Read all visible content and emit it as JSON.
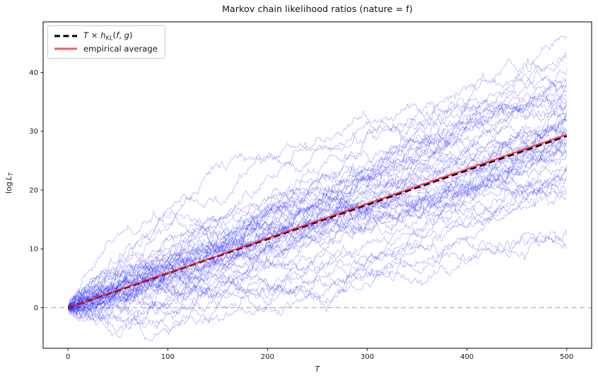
{
  "figure": {
    "title": "Markov chain likelihood ratios (nature = f)",
    "background_color": "#ffffff"
  },
  "chart_data": {
    "type": "line",
    "title": "Markov chain likelihood ratios (nature = f)",
    "xlabel_segments": [
      {
        "t": "T",
        "i": true
      }
    ],
    "ylabel_segments": [
      {
        "t": "log"
      },
      {
        "t": " "
      },
      {
        "t": "L",
        "i": true
      },
      {
        "t": "T",
        "i": true,
        "sub": true
      }
    ],
    "xlim": [
      -25,
      525
    ],
    "ylim": [
      -6.9,
      48.6
    ],
    "xticks": [
      0,
      100,
      200,
      300,
      400,
      500
    ],
    "yticks": [
      0,
      10,
      20,
      30,
      40
    ],
    "grid": false,
    "axes_color": "#000000",
    "tick_label_color": "#1a1a1a",
    "legend": {
      "position": "upper-left",
      "border_color": "#cccccc",
      "entries": [
        {
          "label_segments": [
            {
              "t": "T",
              "i": true
            },
            {
              "t": " × "
            },
            {
              "t": "h",
              "i": true
            },
            {
              "t": "KL",
              "i": true,
              "sub": true
            },
            {
              "t": "("
            },
            {
              "t": "f",
              "i": true
            },
            {
              "t": ", "
            },
            {
              "t": "g",
              "i": true
            },
            {
              "t": ")"
            }
          ],
          "style": "dashed",
          "color": "#000000"
        },
        {
          "label_segments": [
            {
              "t": "empirical average"
            }
          ],
          "style": "solid",
          "color": "#f25c5c"
        }
      ]
    },
    "zero_line": {
      "y": 0,
      "color": "#ababab",
      "style": "dashed",
      "width": 1.2
    },
    "reference_line": {
      "name": "T x h_KL(f,g)",
      "slope_per_T": 0.0583,
      "intercept": 0,
      "value_at_T0": 0,
      "value_at_T500": 29.2,
      "color": "#000000",
      "style": "dashed",
      "width": 2.8
    },
    "empirical_average_line": {
      "name": "empirical average",
      "start_value": 0,
      "end_value_at_T500": 29.2,
      "color": "#ff1f1f",
      "alpha": 0.8,
      "width": 2.3
    },
    "trajectories": {
      "description": "simulated log-likelihood-ratio random walks under nature f",
      "count": 52,
      "steps": 500,
      "start_value": 0,
      "drift_per_step": 0.0583,
      "step_std": 0.36,
      "seed": 20,
      "color": "#2222ff",
      "alpha": 0.32,
      "width": 0.8,
      "final_value_range": [
        9,
        46
      ],
      "min_observed": -4.5,
      "max_observed": 45.8
    }
  }
}
